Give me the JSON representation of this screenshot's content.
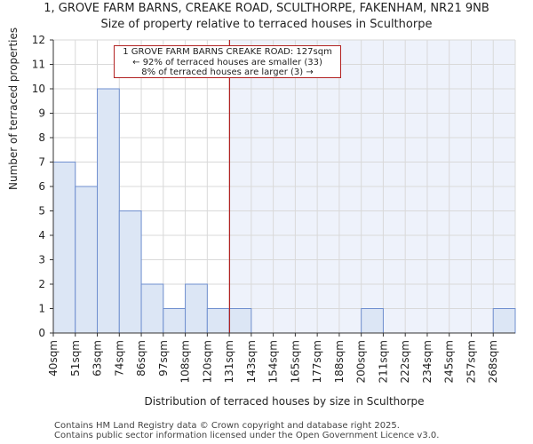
{
  "chart_data": {
    "type": "bar",
    "title": "1, GROVE FARM BARNS, CREAKE ROAD, SCULTHORPE, FAKENHAM, NR21 9NB",
    "subtitle": "Size of property relative to terraced houses in Sculthorpe",
    "xlabel": "Distribution of terraced houses by size in Sculthorpe",
    "ylabel": "Number of terraced properties",
    "categories": [
      "40sqm",
      "51sqm",
      "63sqm",
      "74sqm",
      "86sqm",
      "97sqm",
      "108sqm",
      "120sqm",
      "131sqm",
      "143sqm",
      "154sqm",
      "165sqm",
      "177sqm",
      "188sqm",
      "200sqm",
      "211sqm",
      "222sqm",
      "234sqm",
      "245sqm",
      "257sqm",
      "268sqm"
    ],
    "values": [
      7,
      6,
      10,
      5,
      2,
      1,
      2,
      1,
      1,
      0,
      0,
      0,
      0,
      0,
      1,
      0,
      0,
      0,
      0,
      0,
      1
    ],
    "ylim": [
      0,
      12
    ],
    "yticks": [
      0,
      1,
      2,
      3,
      4,
      5,
      6,
      7,
      8,
      9,
      10,
      11,
      12
    ],
    "grid": true,
    "marker": {
      "value_sqm": 127,
      "color": "#b22222"
    },
    "annotation": {
      "line1": "1 GROVE FARM BARNS CREAKE ROAD: 127sqm",
      "line2": "← 92% of terraced houses are smaller (33)",
      "line3": "8% of terraced houses are larger (3) →"
    },
    "colors": {
      "bar_fill": "#dce6f5",
      "bar_stroke": "#6f8fcf",
      "shade": "#eef2fb",
      "grid": "#d9d9d9"
    }
  },
  "footer": {
    "line1": "Contains HM Land Registry data © Crown copyright and database right 2025.",
    "line2": "Contains public sector information licensed under the Open Government Licence v3.0."
  }
}
